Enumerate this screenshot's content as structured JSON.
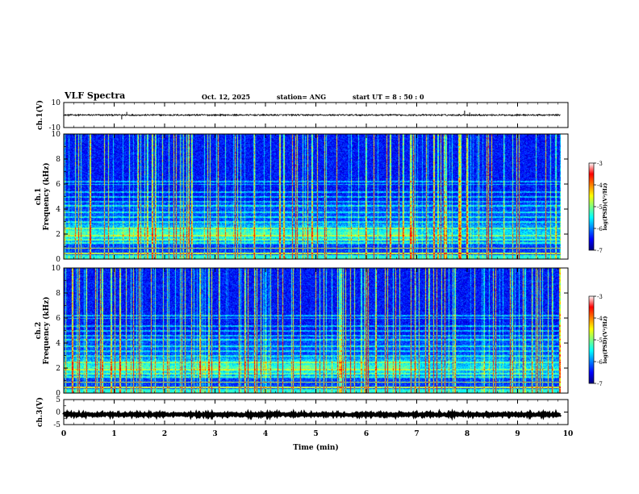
{
  "header": {
    "title": "VLF Spectra",
    "date": "Oct. 12, 2025",
    "station": "station= ANG",
    "start": "start  UT =   8  : 50 : 0"
  },
  "chart_data": [
    {
      "type": "line",
      "panel": "ch1-waveform",
      "ylabel": "ch.1(V)",
      "ylim": [
        -10,
        10
      ],
      "yticks": [
        10,
        -10
      ],
      "baseline": 0,
      "noise_amplitude": 0.6,
      "spikes": [
        {
          "t": 1.15,
          "v": -3.5
        },
        {
          "t": 1.25,
          "v": 2.5
        },
        {
          "t": 7.95,
          "v": 3.5
        },
        {
          "t": 8.05,
          "v": 2.0
        }
      ]
    },
    {
      "type": "heatmap",
      "panel": "ch1-spectrogram",
      "ylabel": "ch.1\nFrequency (kHz)",
      "ylim": [
        0,
        10
      ],
      "yticks": [
        0,
        2,
        4,
        6,
        8,
        10
      ],
      "noise_band_khz": [
        1.2,
        3.0
      ],
      "horizontal_lines_khz": [
        0.5,
        0.9,
        1.3,
        1.6,
        1.9,
        2.5,
        3.0,
        3.4,
        3.8,
        4.3,
        4.6,
        5.0,
        5.4,
        6.0,
        6.2
      ],
      "colorbar": {
        "label": "log(PSD)(V²/Hz)",
        "ticks": [
          -3,
          -4,
          -5,
          -6,
          -7
        ],
        "range": [
          -7,
          -3
        ]
      }
    },
    {
      "type": "heatmap",
      "panel": "ch2-spectrogram",
      "ylabel": "ch.2\nFrequency (kHz)",
      "ylim": [
        0,
        10
      ],
      "yticks": [
        0,
        2,
        4,
        6,
        8,
        10
      ],
      "noise_band_khz": [
        1.2,
        3.0
      ],
      "horizontal_lines_khz": [
        0.5,
        0.9,
        1.3,
        1.6,
        1.9,
        2.5,
        3.0,
        3.4,
        3.8,
        4.3,
        4.6,
        5.0,
        5.4,
        6.0,
        6.2
      ],
      "colorbar": {
        "label": "log(PSD)(V²/Hz)",
        "ticks": [
          -3,
          -4,
          -5,
          -6,
          -7
        ],
        "range": [
          -7,
          -3
        ]
      }
    },
    {
      "type": "line",
      "panel": "ch3-waveform",
      "ylabel": "ch.3(V)",
      "ylim": [
        -5,
        5
      ],
      "yticks": [
        5,
        0,
        -5
      ],
      "baseline": -1.0,
      "noise_amplitude": 0.3,
      "spikes": []
    }
  ],
  "time_axis": {
    "xlabel": "Time  (min)",
    "xlim": [
      0,
      10
    ],
    "xticks": [
      0,
      1,
      2,
      3,
      4,
      5,
      6,
      7,
      8,
      9,
      10
    ],
    "data_end": 9.85
  },
  "colors": {
    "colormap": [
      "#00007f",
      "#0000ff",
      "#0080ff",
      "#00ffff",
      "#80ff80",
      "#ffff00",
      "#ff8000",
      "#ff0000",
      "#ffffff"
    ]
  }
}
